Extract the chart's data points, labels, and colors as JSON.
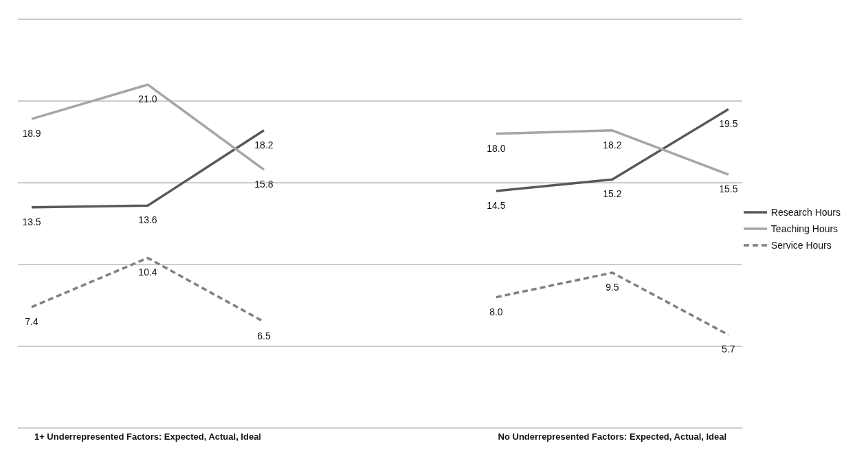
{
  "chart_data": {
    "type": "line",
    "categories": [
      null,
      "1+ Underrepresented Factors: Expected, Actual, Ideal",
      null,
      null,
      null,
      "No Underrepresented Factors: Expected, Actual, Ideal",
      null
    ],
    "series": [
      {
        "name": "Research Hours",
        "color": "#595959",
        "values": [
          13.5,
          13.6,
          18.2,
          null,
          14.5,
          15.2,
          19.5
        ],
        "value_labels": [
          "13.5",
          "13.6",
          "18.2",
          null,
          "14.5",
          "15.2",
          "19.5"
        ],
        "line_style": "solid"
      },
      {
        "name": "Teaching Hours",
        "color": "#a6a6a6",
        "values": [
          18.9,
          21.0,
          15.8,
          null,
          18.0,
          18.2,
          15.5
        ],
        "value_labels": [
          "18.9",
          "21.0",
          "15.8",
          null,
          "18.0",
          "18.2",
          "15.5"
        ],
        "line_style": "solid"
      },
      {
        "name": "Service Hours",
        "color": "#808080",
        "values": [
          7.4,
          10.4,
          6.5,
          null,
          8.0,
          9.5,
          5.7
        ],
        "value_labels": [
          "7.4",
          "10.4",
          "6.5",
          null,
          "8.0",
          "9.5",
          "5.7"
        ],
        "line_style": "dashed"
      }
    ],
    "ylim": [
      0,
      25
    ],
    "yticks": [
      {
        "value": 0,
        "label": null
      },
      {
        "value": 5,
        "label": null
      },
      {
        "value": 10,
        "label": null
      },
      {
        "value": 15,
        "label": null
      },
      {
        "value": 20,
        "label": null
      },
      {
        "value": 25,
        "label": null
      }
    ],
    "grid": "y",
    "legend": "right",
    "marker": "none",
    "tick_labels": "x"
  }
}
